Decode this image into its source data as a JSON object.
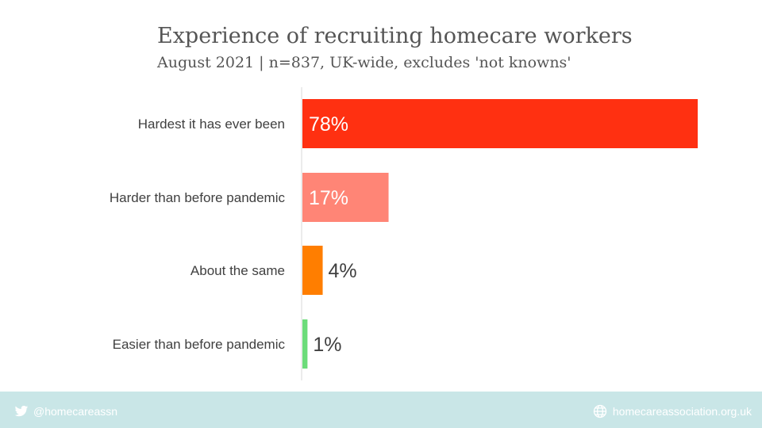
{
  "chart_data": {
    "type": "bar",
    "orientation": "horizontal",
    "title": "Experience of recruiting homecare workers",
    "subtitle": "August 2021 | n=837, UK-wide, excludes 'not knowns'",
    "categories": [
      "Hardest it has ever been",
      "Harder than before pandemic",
      "About the same",
      "Easier than before pandemic"
    ],
    "values": [
      78,
      17,
      4,
      1
    ],
    "data_labels": [
      "78%",
      "17%",
      "4%",
      "1%"
    ],
    "colors": [
      "#ff3011",
      "#ff8576",
      "#ff7e00",
      "#6cdc7a"
    ],
    "xlim": [
      0,
      100
    ],
    "grid": false,
    "legend": "none"
  },
  "footer": {
    "twitter_handle": "@homecareassn",
    "website": "homecareassociation.org.uk",
    "twitter_icon": "twitter-bird-icon",
    "website_icon": "globe-icon"
  }
}
